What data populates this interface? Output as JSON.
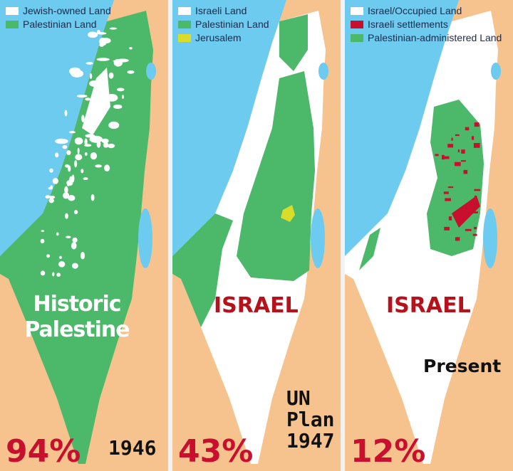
{
  "colors": {
    "sea": "#6ccbef",
    "sand": "#f6c38e",
    "palestinian": "#4cb86a",
    "israeli": "#ffffff",
    "jerusalem": "#d9dd2a",
    "settlements": "#c8102e",
    "label_red": "#c8102e"
  },
  "panels": [
    {
      "legend": [
        {
          "label": "Jewish-owned Land",
          "color": "#ffffff"
        },
        {
          "label": "Palestinian Land",
          "color": "#4cb86a"
        }
      ],
      "title": "Historic Palestine",
      "percent": "94%",
      "year": "1946"
    },
    {
      "legend": [
        {
          "label": "Israeli Land",
          "color": "#ffffff"
        },
        {
          "label": "Palestinian Land",
          "color": "#4cb86a"
        },
        {
          "label": "Jerusalem",
          "color": "#d9dd2a"
        }
      ],
      "title": "ISRAEL",
      "percent": "43%",
      "year_lines": [
        "UN",
        "Plan",
        "1947"
      ]
    },
    {
      "legend": [
        {
          "label": "Israel/Occupied Land",
          "color": "#ffffff"
        },
        {
          "label": "Israeli settlements",
          "color": "#c8102e"
        },
        {
          "label": "Palestinian-administered Land",
          "color": "#4cb86a"
        }
      ],
      "title": "ISRAEL",
      "percent": "12%",
      "year": "Present"
    }
  ]
}
